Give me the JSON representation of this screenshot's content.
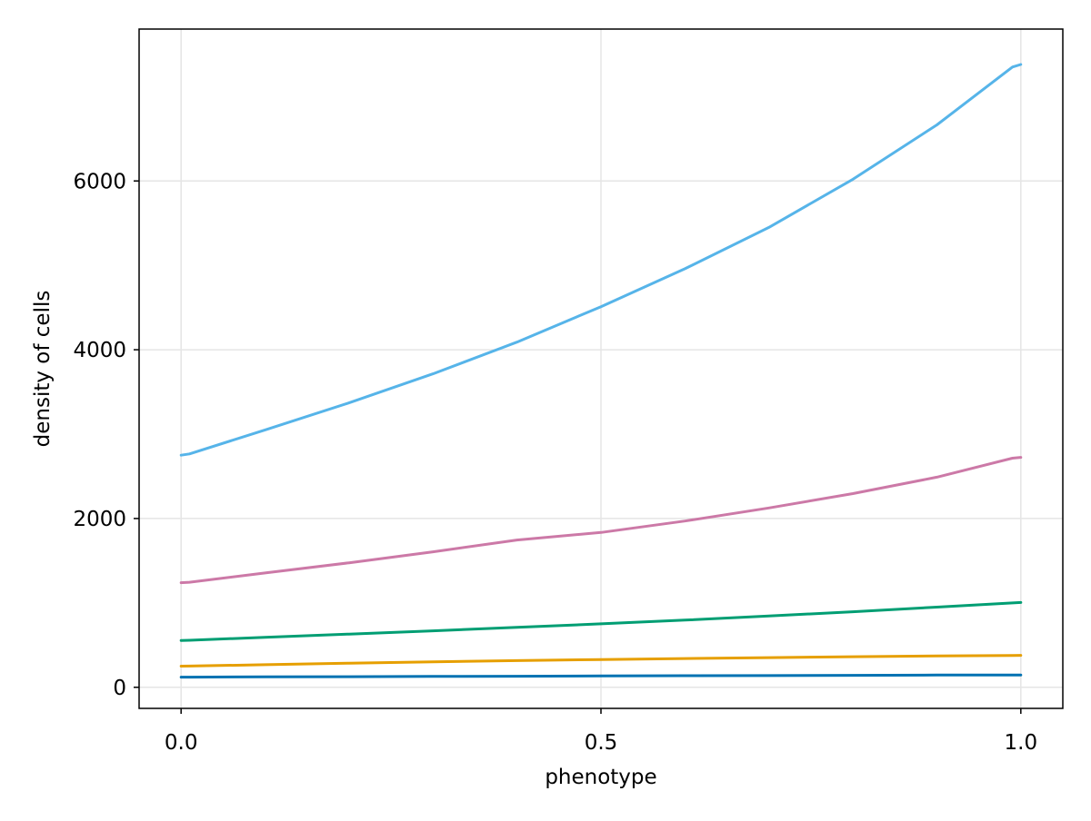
{
  "chart_data": {
    "type": "line",
    "title": "",
    "xlabel": "phenotype",
    "ylabel": "density of cells",
    "xlim": [
      -0.05,
      1.05
    ],
    "ylim": [
      -250,
      7800
    ],
    "xticks": [
      0.0,
      0.5,
      1.0
    ],
    "xtick_labels": [
      "0.0",
      "0.5",
      "1.0"
    ],
    "yticks": [
      0,
      2000,
      4000,
      6000
    ],
    "ytick_labels": [
      "0",
      "2000",
      "4000",
      "6000"
    ],
    "grid": true,
    "legend": "none",
    "x": [
      0.0,
      0.01,
      0.1,
      0.2,
      0.3,
      0.4,
      0.5,
      0.6,
      0.7,
      0.8,
      0.9,
      0.99,
      1.0
    ],
    "series": [
      {
        "color": "#0072b2",
        "values": [
          120,
          120,
          123,
          126,
          129,
          131,
          134,
          137,
          139,
          142,
          145,
          146,
          146
        ]
      },
      {
        "color": "#e69f00",
        "values": [
          250,
          252,
          268,
          286,
          302,
          316,
          329,
          341,
          352,
          362,
          371,
          377,
          378
        ]
      },
      {
        "color": "#009e73",
        "values": [
          555,
          557,
          593,
          630,
          669,
          710,
          752,
          796,
          844,
          895,
          950,
          1000,
          1005
        ]
      },
      {
        "color": "#cc79a7",
        "values": [
          1240,
          1245,
          1355,
          1475,
          1605,
          1745,
          1835,
          1970,
          2125,
          2295,
          2490,
          2715,
          2725
        ]
      },
      {
        "color": "#56b4e9",
        "values": [
          2750,
          2765,
          3050,
          3370,
          3715,
          4090,
          4510,
          4960,
          5450,
          6020,
          6665,
          7350,
          7380
        ]
      }
    ]
  }
}
